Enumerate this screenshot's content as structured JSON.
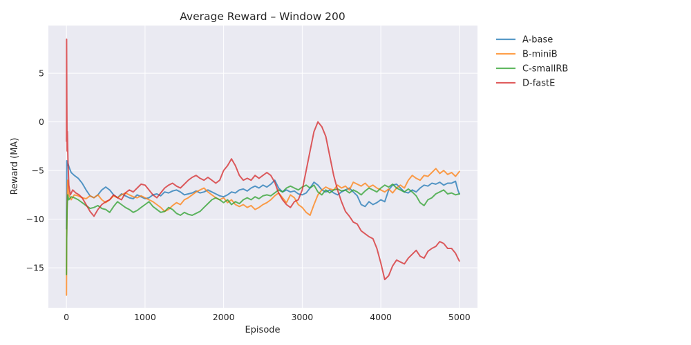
{
  "chart_data": {
    "type": "line",
    "title": "Average Reward – Window 200",
    "xlabel": "Episode",
    "ylabel": "Reward (MA)",
    "xlim": [
      -230,
      5230
    ],
    "ylim": [
      -19.1,
      9.9
    ],
    "xticks": [
      0,
      1000,
      2000,
      3000,
      4000,
      5000
    ],
    "yticks": [
      -15,
      -10,
      -5,
      0,
      5
    ],
    "xtick_labels": [
      "0",
      "1000",
      "2000",
      "3000",
      "4000",
      "5000"
    ],
    "ytick_labels": [
      "−15",
      "−10",
      "−5",
      "0",
      "5"
    ],
    "grid": true,
    "legend_position": "outside-top-right",
    "series": [
      {
        "name": "A-base",
        "color": "#1f77b4",
        "x": [
          0,
          5,
          10,
          20,
          40,
          60,
          100,
          150,
          200,
          250,
          300,
          350,
          400,
          450,
          500,
          550,
          600,
          650,
          700,
          750,
          800,
          850,
          900,
          950,
          1000,
          1050,
          1100,
          1150,
          1200,
          1250,
          1300,
          1350,
          1400,
          1450,
          1500,
          1550,
          1600,
          1650,
          1700,
          1750,
          1800,
          1850,
          1900,
          1950,
          2000,
          2050,
          2100,
          2150,
          2200,
          2250,
          2300,
          2350,
          2400,
          2450,
          2500,
          2550,
          2600,
          2650,
          2700,
          2750,
          2800,
          2850,
          2900,
          2950,
          3000,
          3050,
          3100,
          3150,
          3200,
          3250,
          3300,
          3350,
          3400,
          3450,
          3500,
          3550,
          3600,
          3650,
          3700,
          3750,
          3800,
          3850,
          3900,
          3950,
          4000,
          4050,
          4100,
          4150,
          4200,
          4250,
          4300,
          4350,
          4400,
          4450,
          4500,
          4550,
          4600,
          4650,
          4700,
          4750,
          4800,
          4850,
          4900,
          4950,
          4980,
          5000
        ],
        "y": [
          -11,
          -4.0,
          -4.5,
          -4.3,
          -4.8,
          -5.2,
          -5.5,
          -5.8,
          -6.3,
          -7.0,
          -7.6,
          -7.8,
          -7.5,
          -7.0,
          -6.7,
          -7.0,
          -7.5,
          -7.8,
          -7.4,
          -7.6,
          -7.8,
          -7.9,
          -7.5,
          -7.7,
          -7.9,
          -7.8,
          -7.5,
          -7.4,
          -7.6,
          -7.2,
          -7.3,
          -7.1,
          -7.0,
          -7.2,
          -7.5,
          -7.4,
          -7.3,
          -7.1,
          -7.3,
          -7.2,
          -7.0,
          -7.2,
          -7.4,
          -7.6,
          -7.7,
          -7.5,
          -7.2,
          -7.3,
          -7.0,
          -6.9,
          -7.1,
          -6.8,
          -6.6,
          -6.8,
          -6.5,
          -6.7,
          -6.4,
          -6.0,
          -6.8,
          -7.2,
          -7.0,
          -7.2,
          -7.1,
          -7.4,
          -7.5,
          -7.3,
          -6.8,
          -6.2,
          -6.5,
          -7.0,
          -7.2,
          -7.0,
          -7.3,
          -7.5,
          -7.2,
          -7.0,
          -6.8,
          -7.2,
          -7.6,
          -8.5,
          -8.7,
          -8.2,
          -8.5,
          -8.3,
          -8.0,
          -8.2,
          -7.0,
          -6.5,
          -6.4,
          -6.8,
          -7.2,
          -7.3,
          -7.0,
          -7.2,
          -6.8,
          -6.5,
          -6.6,
          -6.3,
          -6.4,
          -6.2,
          -6.5,
          -6.3,
          -6.3,
          -6.1,
          -7.0,
          -7.4
        ]
      },
      {
        "name": "B-miniB",
        "color": "#ff7f0e",
        "x": [
          0,
          3,
          8,
          15,
          30,
          60,
          100,
          150,
          200,
          250,
          300,
          350,
          400,
          450,
          500,
          550,
          600,
          650,
          700,
          750,
          800,
          850,
          900,
          950,
          1000,
          1050,
          1100,
          1150,
          1200,
          1250,
          1300,
          1350,
          1400,
          1450,
          1500,
          1550,
          1600,
          1650,
          1700,
          1750,
          1800,
          1850,
          1900,
          1950,
          2000,
          2050,
          2100,
          2150,
          2200,
          2250,
          2300,
          2350,
          2400,
          2450,
          2500,
          2550,
          2600,
          2650,
          2700,
          2750,
          2800,
          2850,
          2900,
          2950,
          3000,
          3050,
          3100,
          3150,
          3200,
          3250,
          3300,
          3350,
          3400,
          3450,
          3500,
          3550,
          3600,
          3650,
          3700,
          3750,
          3800,
          3850,
          3900,
          3950,
          4000,
          4050,
          4100,
          4150,
          4200,
          4250,
          4300,
          4350,
          4400,
          4450,
          4500,
          4550,
          4600,
          4650,
          4700,
          4750,
          4800,
          4850,
          4900,
          4950,
          5000
        ],
        "y": [
          -17.8,
          -12,
          -8.5,
          -6.0,
          -7.5,
          -8.0,
          -7.5,
          -7.6,
          -7.8,
          -7.9,
          -7.6,
          -7.8,
          -7.5,
          -8.0,
          -8.3,
          -8.0,
          -7.6,
          -7.8,
          -7.5,
          -7.3,
          -7.5,
          -7.7,
          -7.8,
          -7.6,
          -7.8,
          -8.0,
          -8.2,
          -8.5,
          -8.8,
          -9.2,
          -9.0,
          -8.6,
          -8.3,
          -8.5,
          -8.0,
          -7.8,
          -7.5,
          -7.2,
          -7.0,
          -6.8,
          -7.2,
          -7.5,
          -7.8,
          -8.0,
          -7.8,
          -8.3,
          -8.0,
          -8.5,
          -8.7,
          -8.5,
          -8.8,
          -8.6,
          -9.0,
          -8.8,
          -8.5,
          -8.3,
          -8.0,
          -7.6,
          -7.3,
          -7.8,
          -8.3,
          -7.5,
          -7.8,
          -8.5,
          -8.8,
          -9.3,
          -9.6,
          -8.5,
          -7.5,
          -7.0,
          -6.7,
          -6.9,
          -7.0,
          -6.5,
          -6.8,
          -6.6,
          -7.0,
          -6.2,
          -6.4,
          -6.6,
          -6.3,
          -6.7,
          -6.5,
          -6.8,
          -7.0,
          -7.2,
          -6.9,
          -7.3,
          -6.8,
          -6.5,
          -6.8,
          -6.0,
          -5.5,
          -5.8,
          -6.0,
          -5.5,
          -5.6,
          -5.2,
          -4.8,
          -5.3,
          -5.0,
          -5.4,
          -5.2,
          -5.6,
          -5.1
        ]
      },
      {
        "name": "C-smallRB",
        "color": "#2ca02c",
        "x": [
          0,
          3,
          8,
          15,
          30,
          60,
          100,
          150,
          200,
          250,
          300,
          350,
          400,
          450,
          500,
          550,
          600,
          650,
          700,
          750,
          800,
          850,
          900,
          950,
          1000,
          1050,
          1100,
          1150,
          1200,
          1250,
          1300,
          1350,
          1400,
          1450,
          1500,
          1550,
          1600,
          1650,
          1700,
          1750,
          1800,
          1850,
          1900,
          1950,
          2000,
          2050,
          2100,
          2150,
          2200,
          2250,
          2300,
          2350,
          2400,
          2450,
          2500,
          2550,
          2600,
          2650,
          2700,
          2750,
          2800,
          2850,
          2900,
          2950,
          3000,
          3050,
          3100,
          3150,
          3200,
          3250,
          3300,
          3350,
          3400,
          3450,
          3500,
          3550,
          3600,
          3650,
          3700,
          3750,
          3800,
          3850,
          3900,
          3950,
          4000,
          4050,
          4100,
          4150,
          4200,
          4250,
          4300,
          4350,
          4400,
          4450,
          4500,
          4550,
          4600,
          4650,
          4700,
          4750,
          4800,
          4850,
          4900,
          4950,
          5000
        ],
        "y": [
          -15.7,
          -12,
          -9,
          -7.5,
          -8.0,
          -7.7,
          -7.8,
          -8.0,
          -8.3,
          -8.6,
          -8.9,
          -8.8,
          -8.6,
          -8.9,
          -9.0,
          -9.3,
          -8.7,
          -8.2,
          -8.5,
          -8.8,
          -9.0,
          -9.3,
          -9.1,
          -8.8,
          -8.5,
          -8.2,
          -8.7,
          -9.0,
          -9.3,
          -9.2,
          -8.8,
          -9.0,
          -9.4,
          -9.6,
          -9.3,
          -9.5,
          -9.6,
          -9.4,
          -9.2,
          -8.8,
          -8.4,
          -8.0,
          -7.8,
          -8.0,
          -8.3,
          -8.0,
          -8.5,
          -8.2,
          -8.4,
          -8.0,
          -7.8,
          -8.0,
          -7.7,
          -7.9,
          -7.6,
          -7.5,
          -7.6,
          -7.3,
          -7.0,
          -7.2,
          -6.8,
          -6.6,
          -6.8,
          -7.0,
          -6.7,
          -6.5,
          -6.8,
          -6.5,
          -7.2,
          -7.5,
          -7.0,
          -7.3,
          -7.0,
          -6.9,
          -7.1,
          -7.0,
          -7.3,
          -7.0,
          -7.2,
          -7.5,
          -7.1,
          -6.8,
          -7.0,
          -7.2,
          -6.8,
          -6.5,
          -6.7,
          -6.4,
          -6.8,
          -7.0,
          -7.2,
          -6.9,
          -7.2,
          -7.6,
          -8.3,
          -8.6,
          -8.0,
          -7.8,
          -7.4,
          -7.2,
          -7.0,
          -7.4,
          -7.3,
          -7.5,
          -7.4
        ]
      },
      {
        "name": "D-fastE",
        "color": "#d62728",
        "x": [
          0,
          2,
          5,
          8,
          12,
          20,
          30,
          50,
          80,
          120,
          160,
          200,
          250,
          300,
          350,
          400,
          450,
          500,
          550,
          600,
          650,
          700,
          750,
          800,
          850,
          900,
          950,
          1000,
          1050,
          1100,
          1150,
          1200,
          1250,
          1300,
          1350,
          1400,
          1450,
          1500,
          1550,
          1600,
          1650,
          1700,
          1750,
          1800,
          1850,
          1900,
          1950,
          2000,
          2050,
          2100,
          2150,
          2200,
          2250,
          2300,
          2350,
          2400,
          2450,
          2500,
          2550,
          2600,
          2650,
          2700,
          2750,
          2800,
          2850,
          2900,
          2950,
          3000,
          3050,
          3100,
          3150,
          3200,
          3250,
          3300,
          3350,
          3400,
          3450,
          3500,
          3550,
          3600,
          3650,
          3700,
          3750,
          3800,
          3850,
          3900,
          3950,
          4000,
          4050,
          4100,
          4150,
          4200,
          4250,
          4300,
          4350,
          4400,
          4450,
          4500,
          4550,
          4600,
          4650,
          4700,
          4750,
          4800,
          4850,
          4900,
          4950,
          4980,
          5000
        ],
        "y": [
          -2,
          8.5,
          2.5,
          -3.0,
          -1.0,
          -4.0,
          -6.5,
          -7.5,
          -7.0,
          -7.3,
          -7.5,
          -7.8,
          -8.5,
          -9.2,
          -9.7,
          -9.0,
          -8.5,
          -8.2,
          -8.0,
          -7.5,
          -7.8,
          -8.0,
          -7.3,
          -7.0,
          -7.2,
          -6.8,
          -6.4,
          -6.5,
          -7.0,
          -7.5,
          -7.8,
          -7.3,
          -6.8,
          -6.5,
          -6.3,
          -6.6,
          -6.8,
          -6.4,
          -6.0,
          -5.7,
          -5.5,
          -5.8,
          -6.0,
          -5.7,
          -6.0,
          -6.3,
          -6.0,
          -5.0,
          -4.5,
          -3.8,
          -4.5,
          -5.5,
          -6.0,
          -5.8,
          -6.0,
          -5.5,
          -5.8,
          -5.5,
          -5.2,
          -5.5,
          -6.2,
          -7.3,
          -8.0,
          -8.5,
          -8.8,
          -8.2,
          -8.0,
          -7.0,
          -5.0,
          -3.0,
          -1.0,
          0.0,
          -0.5,
          -1.5,
          -3.5,
          -5.5,
          -7.0,
          -8.2,
          -9.2,
          -9.7,
          -10.3,
          -10.5,
          -11.2,
          -11.5,
          -11.8,
          -12.0,
          -13.0,
          -14.5,
          -16.2,
          -15.8,
          -14.8,
          -14.2,
          -14.4,
          -14.6,
          -14.0,
          -13.6,
          -13.2,
          -13.8,
          -14.0,
          -13.3,
          -13.0,
          -12.8,
          -12.3,
          -12.5,
          -13.0,
          -13.0,
          -13.5,
          -14.0,
          -14.3
        ]
      }
    ]
  }
}
